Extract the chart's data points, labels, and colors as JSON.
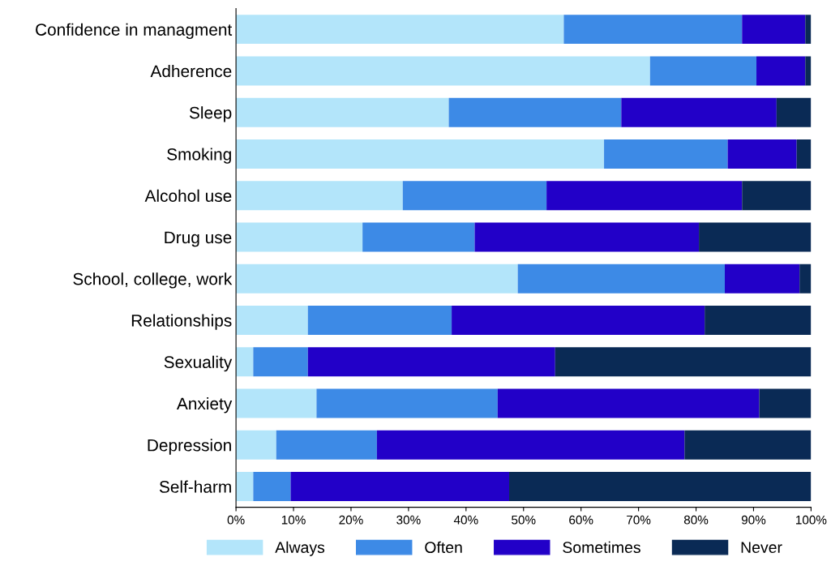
{
  "chart_data": {
    "type": "bar",
    "orientation": "horizontal",
    "stacked": true,
    "categories": [
      "Confidence in managment",
      "Adherence",
      "Sleep",
      "Smoking",
      "Alcohol use",
      "Drug use",
      "School, college, work",
      "Relationships",
      "Sexuality",
      "Anxiety",
      "Depression",
      "Self-harm"
    ],
    "series": [
      {
        "name": "Always",
        "color": "#b3e5fa",
        "values": [
          57,
          72,
          37,
          64,
          29,
          22,
          49,
          12.5,
          3,
          14,
          7,
          3
        ]
      },
      {
        "name": "Often",
        "color": "#3d8ae6",
        "values": [
          31,
          18.5,
          30,
          21.5,
          25,
          19.5,
          36,
          25,
          9.5,
          31.5,
          17.5,
          6.5
        ]
      },
      {
        "name": "Sometimes",
        "color": "#2200c8",
        "values": [
          11,
          8.5,
          27,
          12,
          34,
          39,
          13,
          44,
          43,
          45.5,
          53.5,
          38
        ]
      },
      {
        "name": "Never",
        "color": "#0a2a55",
        "values": [
          1,
          1,
          6,
          2.5,
          12,
          19.5,
          2,
          18.5,
          44.5,
          9,
          22,
          52.5
        ]
      }
    ],
    "xlim": [
      0,
      100
    ],
    "xticks": [
      {
        "value": 0,
        "label": "0%"
      },
      {
        "value": 10,
        "label": "10%"
      },
      {
        "value": 20,
        "label": "20%"
      },
      {
        "value": 30,
        "label": "30%"
      },
      {
        "value": 40,
        "label": "40%"
      },
      {
        "value": 50,
        "label": "50%"
      },
      {
        "value": 60,
        "label": "60%"
      },
      {
        "value": 70,
        "label": "70%"
      },
      {
        "value": 80,
        "label": "80%"
      },
      {
        "value": 90,
        "label": "90%"
      },
      {
        "value": 100,
        "label": "100%"
      }
    ],
    "grid": false,
    "legend": "bottom"
  }
}
